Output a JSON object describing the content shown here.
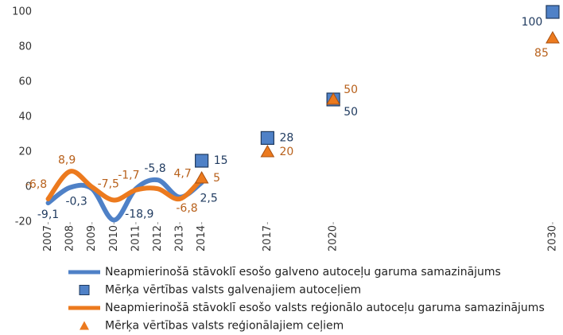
{
  "chart_data": {
    "type": "line",
    "xlim": [
      2006.4,
      2030.4
    ],
    "xticks": [
      2007,
      2008,
      2009,
      2010,
      2011,
      2012,
      2013,
      2014,
      2017,
      2020,
      2030
    ],
    "ylim": [
      -20,
      100
    ],
    "yticks": [
      -20,
      0,
      20,
      40,
      60,
      80,
      100
    ],
    "grid": false,
    "series": [
      {
        "name": "Neapmierinošā stāvoklī esošo galveno autoceļu garuma samazinājums",
        "kind": "line",
        "color": "#4f81c7",
        "x": [
          2007,
          2008,
          2009,
          2010,
          2011,
          2012,
          2013,
          2014
        ],
        "values": [
          -9.1,
          -0.3,
          -1,
          -18.9,
          -1,
          4,
          -5.8,
          2.5
        ],
        "value_labels": [
          "-9,1",
          "-0,3",
          null,
          "-18,9",
          null,
          null,
          "-5,8",
          "2,5"
        ]
      },
      {
        "name": "Mērķa vērtības valsts galvenajiem autoceļiem",
        "kind": "square",
        "color": "#4f81c7",
        "x": [
          2014,
          2017,
          2020,
          2030
        ],
        "values": [
          15,
          28,
          50,
          100
        ]
      },
      {
        "name": "Neapmierinošā stāvoklī esošo valsts reģionālo autoceļu garuma samazinājums",
        "kind": "line",
        "color": "#ec7a1e",
        "x": [
          2007,
          2008,
          2009,
          2010,
          2011,
          2012,
          2013,
          2014
        ],
        "values": [
          -6.8,
          8.9,
          0,
          -7.5,
          -1.7,
          -1,
          -6.8,
          4.7
        ],
        "value_labels": [
          "-6,8",
          "8,9",
          null,
          "-7,5",
          "-1,7",
          null,
          "-6,8",
          "4,7"
        ]
      },
      {
        "name": "Mērķa vērtības valsts reģionālajiem ceļiem",
        "kind": "triangle",
        "color": "#ec7a1e",
        "x": [
          2014,
          2017,
          2020,
          2030
        ],
        "values": [
          5,
          20,
          50,
          85
        ]
      }
    ]
  }
}
